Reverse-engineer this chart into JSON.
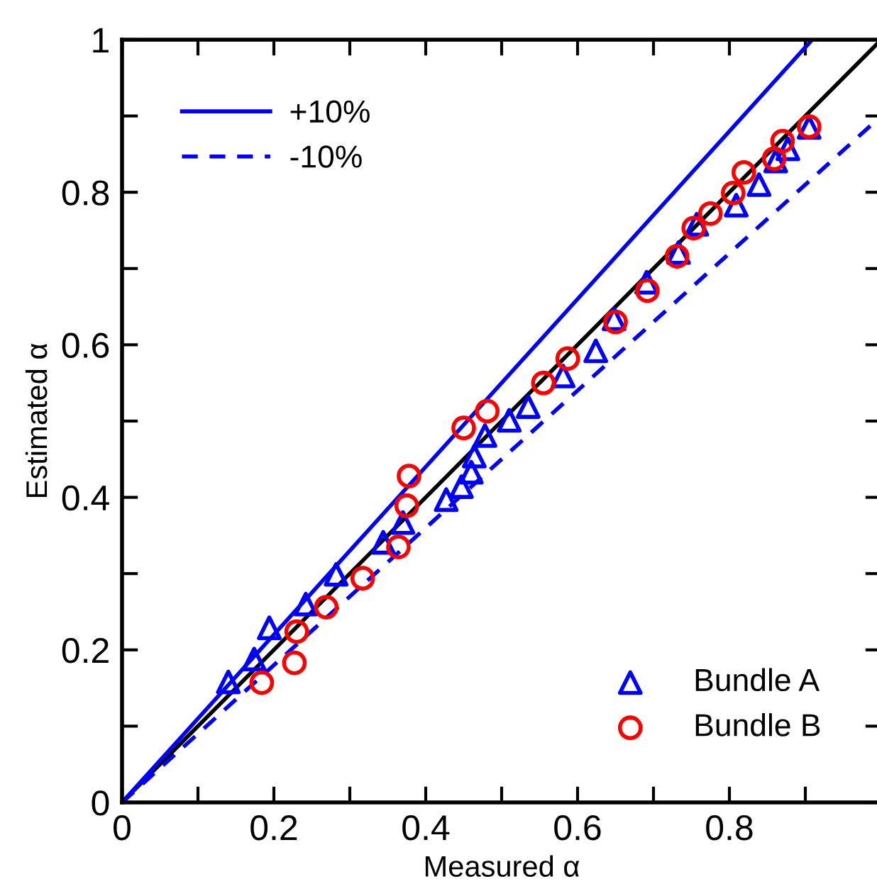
{
  "chart_data": {
    "type": "scatter",
    "xlabel": "Measured α",
    "ylabel": "Estimated α",
    "xlim": [
      0,
      1
    ],
    "ylim": [
      0,
      1
    ],
    "xticks": [
      0,
      {
        "value": 0.1,
        "label": null
      },
      0.2,
      {
        "value": 0.3,
        "label": null
      },
      0.4,
      {
        "value": 0.5,
        "label": null
      },
      0.6,
      {
        "value": 0.7,
        "label": null
      },
      0.8,
      {
        "value": 0.9,
        "label": null
      },
      {
        "value": 1,
        "label": null
      }
    ],
    "yticks": [
      0,
      {
        "value": 0.1,
        "label": null
      },
      0.2,
      {
        "value": 0.3,
        "label": null
      },
      0.4,
      {
        "value": 0.5,
        "label": null
      },
      0.6,
      {
        "value": 0.7,
        "label": null
      },
      0.8,
      {
        "value": 0.9,
        "label": null
      },
      1
    ],
    "grid": false,
    "legend": [
      "top left",
      "bottom right"
    ],
    "series": [
      {
        "type": "line",
        "color": "#000000",
        "line_style": "solid",
        "marker": "none",
        "x": [
          0,
          1
        ],
        "values": [
          0,
          1
        ]
      },
      {
        "type": "line",
        "name": "+10%",
        "color": "#0000ff",
        "line_style": "solid",
        "marker": "none",
        "x": [
          0,
          0.909
        ],
        "values": [
          0,
          1
        ]
      },
      {
        "type": "line",
        "name": "-10%",
        "color": "#0000ff",
        "line_style": "dashed",
        "marker": "none",
        "x": [
          0,
          1
        ],
        "values": [
          0,
          0.9
        ]
      },
      {
        "name": "Bundle A",
        "color": "#0000ff",
        "marker": "triangle",
        "x": [
          0.14,
          0.174,
          0.194,
          0.242,
          0.282,
          0.344,
          0.37,
          0.427,
          0.447,
          0.46,
          0.464,
          0.478,
          0.51,
          0.535,
          0.581,
          0.624,
          0.648,
          0.691,
          0.733,
          0.757,
          0.809,
          0.839,
          0.861,
          0.877,
          0.905
        ],
        "values": [
          0.158,
          0.188,
          0.229,
          0.26,
          0.299,
          0.341,
          0.367,
          0.397,
          0.414,
          0.433,
          0.454,
          0.481,
          0.501,
          0.519,
          0.559,
          0.592,
          0.634,
          0.682,
          0.721,
          0.758,
          0.783,
          0.81,
          0.841,
          0.857,
          0.885
        ]
      },
      {
        "name": "Bundle B",
        "color": "#ff0000",
        "marker": "circle",
        "x": [
          0.184,
          0.227,
          0.23,
          0.269,
          0.317,
          0.364,
          0.375,
          0.378,
          0.45,
          0.481,
          0.555,
          0.587,
          0.65,
          0.692,
          0.731,
          0.753,
          0.775,
          0.805,
          0.819,
          0.859,
          0.87,
          0.905
        ],
        "values": [
          0.157,
          0.183,
          0.224,
          0.256,
          0.294,
          0.335,
          0.389,
          0.428,
          0.491,
          0.513,
          0.55,
          0.582,
          0.63,
          0.671,
          0.716,
          0.753,
          0.772,
          0.799,
          0.826,
          0.844,
          0.867,
          0.886
        ]
      }
    ]
  }
}
